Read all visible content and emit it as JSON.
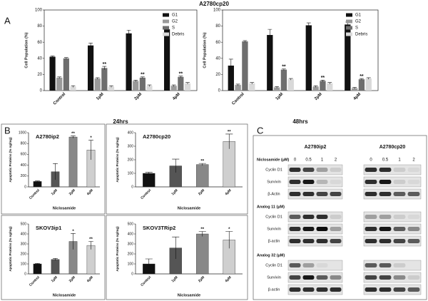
{
  "panels": [
    "A",
    "B",
    "C"
  ],
  "panel_a_title": "A2780cp20",
  "chart_data": [
    {
      "type": "grouped_bar",
      "x_label": "24hrs",
      "y_label": "Cell Population (%)",
      "categories": [
        "Control",
        "1µM",
        "2µM",
        "4µM"
      ],
      "ylim": [
        0,
        100
      ],
      "yticks": [
        0,
        20,
        40,
        60,
        80,
        100
      ],
      "series": [
        {
          "name": "G1",
          "color": "#111111",
          "values": [
            42,
            56,
            71,
            76
          ],
          "errors": [
            1,
            3,
            4,
            1
          ]
        },
        {
          "name": "G2",
          "color": "#9a9a9a",
          "values": [
            16,
            15,
            12,
            6
          ],
          "errors": [
            1,
            1,
            1,
            1
          ]
        },
        {
          "name": "S",
          "color": "#6e6e6e",
          "values": [
            40,
            28,
            16,
            17
          ],
          "errors": [
            1,
            2,
            1,
            1
          ]
        },
        {
          "name": "Debris",
          "color": "#d9d9d9",
          "values": [
            5,
            5,
            6,
            9
          ],
          "errors": [
            1,
            1,
            1,
            1
          ]
        }
      ],
      "annotations": [
        {
          "category": "1µM",
          "series": "S",
          "text": "**"
        },
        {
          "category": "2µM",
          "series": "S",
          "text": "**"
        },
        {
          "category": "4µM",
          "series": "S",
          "text": "**"
        }
      ]
    },
    {
      "type": "grouped_bar",
      "x_label": "48hrs",
      "y_label": "Cell Population (%)",
      "categories": [
        "Control",
        "1µM",
        "2µM",
        "4µM"
      ],
      "ylim": [
        0,
        100
      ],
      "yticks": [
        0,
        20,
        40,
        60,
        80,
        100
      ],
      "series": [
        {
          "name": "G1",
          "color": "#111111",
          "values": [
            31,
            69,
            81,
            82
          ],
          "errors": [
            8,
            7,
            3,
            3
          ]
        },
        {
          "name": "G2",
          "color": "#9a9a9a",
          "values": [
            7,
            4,
            5,
            3
          ],
          "errors": [
            1,
            1,
            1,
            1
          ]
        },
        {
          "name": "S",
          "color": "#6e6e6e",
          "values": [
            61,
            26,
            12,
            14
          ],
          "errors": [
            1,
            1,
            1,
            1
          ]
        },
        {
          "name": "Debris",
          "color": "#d9d9d9",
          "values": [
            9,
            14,
            9,
            15
          ],
          "errors": [
            1,
            1,
            1,
            1
          ]
        }
      ],
      "annotations": [
        {
          "category": "1µM",
          "series": "S",
          "text": "**"
        },
        {
          "category": "2µM",
          "series": "S",
          "text": "**"
        },
        {
          "category": "4µM",
          "series": "S",
          "text": "**"
        }
      ]
    },
    {
      "type": "bar",
      "title": "A2780ip2",
      "x_label": "Niclosamide",
      "y_label": "Apoptotic Proteins (% ng/mg)",
      "categories": [
        "Control",
        "1µM",
        "2µM",
        "4µM"
      ],
      "values": [
        100,
        280,
        920,
        680
      ],
      "errors": [
        10,
        150,
        20,
        180
      ],
      "colors": [
        "#111111",
        "#555555",
        "#888888",
        "#cfcfcf"
      ],
      "ylim": [
        0,
        1000
      ],
      "yticks": [
        0,
        200,
        400,
        600,
        800,
        1000
      ],
      "annotations": [
        {
          "category": "2µM",
          "text": "**"
        },
        {
          "category": "4µM",
          "text": "*"
        }
      ]
    },
    {
      "type": "bar",
      "title": "A2780cp20",
      "x_label": "Niclosamide",
      "y_label": "Apoptotic Proteins (% ng/mg)",
      "categories": [
        "Control",
        "1µM",
        "2µM",
        "4µM"
      ],
      "values": [
        100,
        155,
        165,
        335
      ],
      "errors": [
        8,
        50,
        8,
        55
      ],
      "colors": [
        "#111111",
        "#555555",
        "#888888",
        "#cfcfcf"
      ],
      "ylim": [
        0,
        400
      ],
      "yticks": [
        0,
        100,
        200,
        300,
        400
      ],
      "annotations": [
        {
          "category": "2µM",
          "text": "**"
        },
        {
          "category": "4µM",
          "text": "**"
        }
      ]
    },
    {
      "type": "bar",
      "title": "SKOV3ip1",
      "x_label": "Niclosamide",
      "y_label": "Apoptotic Proteins (% ng/mg)",
      "categories": [
        "Control",
        "1µM",
        "2µM",
        "4µM"
      ],
      "values": [
        100,
        145,
        325,
        285
      ],
      "errors": [
        5,
        10,
        80,
        40
      ],
      "colors": [
        "#111111",
        "#555555",
        "#888888",
        "#cfcfcf"
      ],
      "ylim": [
        0,
        500
      ],
      "yticks": [
        0,
        100,
        200,
        300,
        400,
        500
      ],
      "annotations": [
        {
          "category": "2µM",
          "text": "*"
        },
        {
          "category": "4µM",
          "text": "**"
        }
      ]
    },
    {
      "type": "bar",
      "title": "SKOV3TRip2",
      "x_label": "Niclosamide",
      "y_label": "Apoptotic Proteins (% ng/mg)",
      "categories": [
        "Control",
        "1µM",
        "2µM",
        "4µM"
      ],
      "values": [
        100,
        260,
        400,
        340
      ],
      "errors": [
        50,
        110,
        25,
        85
      ],
      "colors": [
        "#111111",
        "#555555",
        "#888888",
        "#cfcfcf"
      ],
      "ylim": [
        0,
        500
      ],
      "yticks": [
        0,
        100,
        200,
        300,
        400,
        500
      ],
      "annotations": [
        {
          "category": "2µM",
          "text": "**"
        },
        {
          "category": "4µM",
          "text": "*"
        }
      ]
    }
  ],
  "blots": {
    "columns": [
      "A2780ip2",
      "A2780cp20"
    ],
    "doses": [
      "0",
      "0.5",
      "1",
      "2"
    ],
    "groups": [
      {
        "label": "Niclosamide (µM)",
        "rows": [
          "Cyclin D1",
          "Survivin",
          "β-Actin"
        ]
      },
      {
        "label": "Analog 11 (µM)",
        "rows": [
          "Cyclin D1",
          "Survivin",
          "β-actin"
        ]
      },
      {
        "label": "Analog 32 (µM)",
        "rows": [
          "Cyclin D1",
          "Survivin",
          "β-actin"
        ]
      }
    ]
  }
}
